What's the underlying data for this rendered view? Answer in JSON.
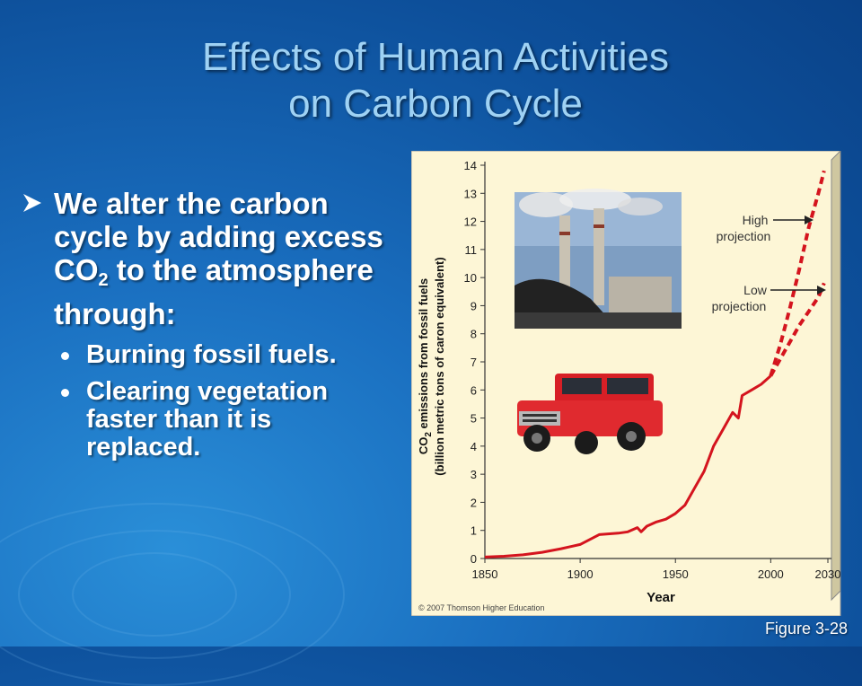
{
  "slide": {
    "title_line1": "Effects of Human Activities",
    "title_line2": "on Carbon Cycle",
    "bullet_main_a": "We alter the carbon cycle by adding excess CO",
    "bullet_main_sub": "2",
    "bullet_main_b": " to the atmosphere through:",
    "sub_bullets": [
      "Burning fossil fuels.",
      "Clearing vegetation faster than it is replaced."
    ],
    "figure_label": "Figure 3-28",
    "copyright": "© 2007 Thomson Higher Education"
  },
  "colors": {
    "title": "#9fd2f4",
    "text": "#ffffff",
    "chart_bg": "#fdf6d6",
    "line": "#d4141e"
  },
  "chart_data": {
    "type": "line",
    "xlabel": "Year",
    "ylabel_line1": "CO",
    "ylabel_sub": "2",
    "ylabel_line1_rest": " emissions from fossil fuels",
    "ylabel_line2": "(billion metric tons of caron equivalent)",
    "xlim": [
      1850,
      2030
    ],
    "ylim": [
      0,
      14
    ],
    "x_ticks": [
      1850,
      1900,
      1950,
      2000,
      2030
    ],
    "y_ticks": [
      0,
      1,
      2,
      3,
      4,
      5,
      6,
      7,
      8,
      9,
      10,
      11,
      12,
      13,
      14
    ],
    "series": [
      {
        "style": "solid",
        "x": [
          1850,
          1860,
          1870,
          1880,
          1890,
          1900,
          1910,
          1920,
          1925,
          1930,
          1932,
          1935,
          1940,
          1945,
          1950,
          1955,
          1960,
          1965,
          1970,
          1975,
          1980,
          1983,
          1985,
          1990,
          1995,
          2000
        ],
        "y": [
          0.05,
          0.08,
          0.13,
          0.22,
          0.35,
          0.5,
          0.85,
          0.9,
          0.95,
          1.1,
          0.95,
          1.15,
          1.3,
          1.4,
          1.6,
          1.9,
          2.5,
          3.1,
          4.0,
          4.6,
          5.2,
          5.0,
          5.8,
          6.0,
          6.2,
          6.5
        ]
      },
      {
        "name": "High projection",
        "style": "dashed",
        "x": [
          2000,
          2005,
          2010,
          2015,
          2020,
          2025,
          2028
        ],
        "y": [
          6.5,
          7.6,
          8.9,
          10.3,
          11.8,
          13.0,
          13.8
        ]
      },
      {
        "name": "Low projection",
        "style": "dashed",
        "x": [
          2000,
          2005,
          2010,
          2015,
          2020,
          2025,
          2028
        ],
        "y": [
          6.5,
          7.1,
          7.7,
          8.3,
          8.8,
          9.3,
          9.8
        ]
      }
    ],
    "annotations": [
      {
        "line1": "High",
        "line2": "projection"
      },
      {
        "line1": "Low",
        "line2": "projection"
      }
    ]
  }
}
